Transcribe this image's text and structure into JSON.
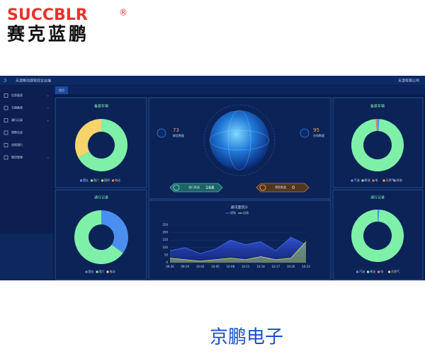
{
  "logo": {
    "brand": "SUCCBLR",
    "mark": "®",
    "name": "赛克蓝鹏"
  },
  "app": {
    "title": "天津移动源管控企业端",
    "company": "天津有限公司",
    "tab": "首页"
  },
  "menu": [
    "信息备案",
    "车辆备案",
    "通行记录",
    "预警信息",
    "违规通行",
    "管控管理"
  ],
  "stats": [
    {
      "value": 73,
      "label": "绑定数量"
    },
    {
      "value": 95,
      "label": "在线数量"
    }
  ],
  "counters": [
    {
      "label": "通行数量",
      "value": 168
    },
    {
      "label": "预警数量",
      "value": 0
    }
  ],
  "chart_data": [
    {
      "type": "pie",
      "title": "备案车辆",
      "categories": [
        "国五",
        "国六",
        "国四",
        "电动"
      ],
      "colors": [
        "#4a8ff0",
        "#7ef0a8",
        "#f5d56a",
        "#f07a7a"
      ],
      "values": [
        0,
        67,
        33,
        0
      ]
    },
    {
      "type": "pie",
      "title": "通行记录",
      "categories": [
        "国五",
        "国六",
        "电动"
      ],
      "colors": [
        "#4a8ff0",
        "#7ef0a8",
        "#f5d56a"
      ],
      "values": [
        35,
        65,
        0
      ]
    },
    {
      "type": "pie",
      "title": "备案车辆",
      "categories": [
        "汽油",
        "柴油",
        "电",
        "天然气",
        "其他"
      ],
      "colors": [
        "#4a8ff0",
        "#7ef0a8",
        "#f07a7a",
        "#f5a45a",
        "#a98af0"
      ],
      "values": [
        1,
        98,
        1,
        0,
        0
      ]
    },
    {
      "type": "pie",
      "title": "通行记录",
      "categories": [
        "汽油",
        "柴油",
        "电",
        "天然气"
      ],
      "colors": [
        "#4a8ff0",
        "#7ef0a8",
        "#f07a7a",
        "#f5d56a"
      ],
      "values": [
        1,
        99,
        0,
        0
      ]
    },
    {
      "type": "area",
      "title": "通讯量统计",
      "categories": [
        "09-26",
        "09-29",
        "10-02",
        "10-05",
        "10-08",
        "10-11",
        "10-14",
        "10-17",
        "10-20",
        "10-23"
      ],
      "series": [
        {
          "name": "进场",
          "color": "#4a6cf0",
          "values": [
            80,
            100,
            60,
            90,
            150,
            120,
            140,
            80,
            170,
            120
          ]
        },
        {
          "name": "出场",
          "color": "#c8e85a",
          "values": [
            30,
            20,
            10,
            20,
            30,
            20,
            40,
            20,
            30,
            140
          ]
        }
      ],
      "ylim": [
        0,
        250
      ],
      "yticks": [
        0,
        50,
        100,
        150,
        200,
        250
      ]
    }
  ],
  "footer": "京鹏电子"
}
